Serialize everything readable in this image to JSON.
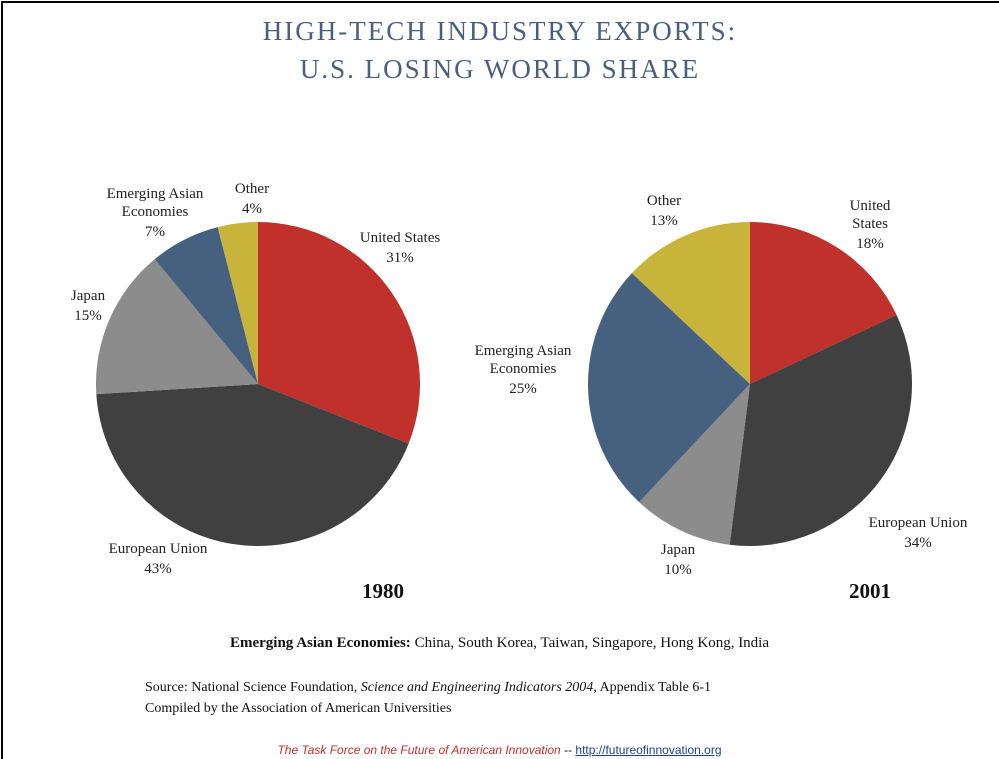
{
  "title": [
    "HIGH-TECH INDUSTRY EXPORTS:",
    "U.S. LOSING WORLD SHARE"
  ],
  "chart_data": [
    {
      "type": "pie",
      "title": "1980",
      "categories": [
        "United States",
        "European Union",
        "Japan",
        "Emerging Asian Economies",
        "Other"
      ],
      "values": [
        31,
        43,
        15,
        7,
        4
      ],
      "value_labels": [
        "31%",
        "43%",
        "15%",
        "7%",
        "4%"
      ],
      "colors": [
        "#c0312b",
        "#404040",
        "#8c8c8c",
        "#46607f",
        "#c8b43a"
      ]
    },
    {
      "type": "pie",
      "title": "2001",
      "categories": [
        "United States",
        "European Union",
        "Japan",
        "Emerging Asian Economies",
        "Other"
      ],
      "values": [
        18,
        34,
        10,
        25,
        13
      ],
      "value_labels": [
        "18%",
        "34%",
        "10%",
        "25%",
        "13%"
      ],
      "colors": [
        "#c0312b",
        "#404040",
        "#8c8c8c",
        "#46607f",
        "#c8b43a"
      ]
    }
  ],
  "footnote": {
    "term": "Emerging Asian Economies:",
    "text": "China, South Korea, Taiwan, Singapore, Hong Kong, India"
  },
  "source": {
    "prefix": "Source: National Science Foundation,",
    "publication": "Science and Engineering Indicators 2004",
    "suffix": ", Appendix Table 6-1",
    "compiled": "Compiled by the Association of American Universities"
  },
  "footer": {
    "org": "The Task Force on the Future of American Innovation",
    "separator": "--",
    "url": "http://futureofinnovation.org"
  }
}
